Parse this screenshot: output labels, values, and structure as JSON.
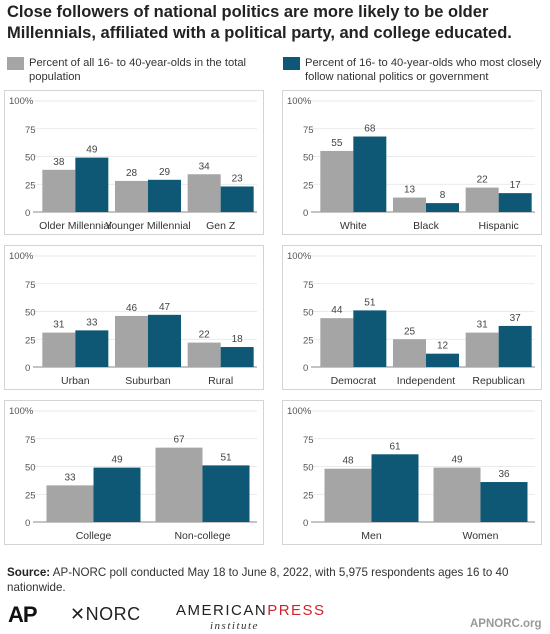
{
  "title": "Close followers of national politics are more likely to be older Millennials, affiliated with a political party, and college educated.",
  "legend": {
    "series_a": "Percent of all 16- to 40-year-olds in the total population",
    "series_b": "Percent of 16- to 40-year-olds who most closely follow national politics or government"
  },
  "colors": {
    "series_a": "#a5a5a5",
    "series_b": "#0f5875"
  },
  "source_label": "Source:",
  "source_text": "AP-NORC poll conducted May 18 to June 8, 2022, with 5,975 respondents ages 16 to 40 nationwide.",
  "logos": {
    "ap": "AP",
    "norc": "NORC",
    "api_american": "AMERICAN",
    "api_press": "PRESS",
    "api_institute": "institute"
  },
  "site": "APNORC.org",
  "chart_data": [
    {
      "type": "bar",
      "categories": [
        "Older Millennial",
        "Younger Millennial",
        "Gen Z"
      ],
      "series": [
        {
          "name": "Percent of all 16- to 40-year-olds in the total population",
          "values": [
            38,
            28,
            34
          ]
        },
        {
          "name": "Percent of 16- to 40-year-olds who most closely follow national politics or government",
          "values": [
            49,
            29,
            23
          ]
        }
      ],
      "yticks": [
        "0",
        "25",
        "50",
        "75",
        "100%"
      ],
      "ylim": [
        0,
        100
      ]
    },
    {
      "type": "bar",
      "categories": [
        "White",
        "Black",
        "Hispanic"
      ],
      "series": [
        {
          "name": "Percent of all 16- to 40-year-olds in the total population",
          "values": [
            55,
            13,
            22
          ]
        },
        {
          "name": "Percent of 16- to 40-year-olds who most closely follow national politics or government",
          "values": [
            68,
            8,
            17
          ]
        }
      ],
      "yticks": [
        "0",
        "25",
        "50",
        "75",
        "100%"
      ],
      "ylim": [
        0,
        100
      ]
    },
    {
      "type": "bar",
      "categories": [
        "Urban",
        "Suburban",
        "Rural"
      ],
      "series": [
        {
          "name": "Percent of all 16- to 40-year-olds in the total population",
          "values": [
            31,
            46,
            22
          ]
        },
        {
          "name": "Percent of 16- to 40-year-olds who most closely follow national politics or government",
          "values": [
            33,
            47,
            18
          ]
        }
      ],
      "yticks": [
        "0",
        "25",
        "50",
        "75",
        "100%"
      ],
      "ylim": [
        0,
        100
      ]
    },
    {
      "type": "bar",
      "categories": [
        "Democrat",
        "Independent",
        "Republican"
      ],
      "series": [
        {
          "name": "Percent of all 16- to 40-year-olds in the total population",
          "values": [
            44,
            25,
            31
          ]
        },
        {
          "name": "Percent of 16- to 40-year-olds who most closely follow national politics or government",
          "values": [
            51,
            12,
            37
          ]
        }
      ],
      "yticks": [
        "0",
        "25",
        "50",
        "75",
        "100%"
      ],
      "ylim": [
        0,
        100
      ]
    },
    {
      "type": "bar",
      "categories": [
        "College",
        "Non-college"
      ],
      "series": [
        {
          "name": "Percent of all 16- to 40-year-olds in the total population",
          "values": [
            33,
            67
          ]
        },
        {
          "name": "Percent of 16- to 40-year-olds who most closely follow national politics or government",
          "values": [
            49,
            51
          ]
        }
      ],
      "yticks": [
        "0",
        "25",
        "50",
        "75",
        "100%"
      ],
      "ylim": [
        0,
        100
      ]
    },
    {
      "type": "bar",
      "categories": [
        "Men",
        "Women"
      ],
      "series": [
        {
          "name": "Percent of all 16- to 40-year-olds in the total population",
          "values": [
            48,
            49
          ]
        },
        {
          "name": "Percent of 16- to 40-year-olds who most closely follow national politics or government",
          "values": [
            61,
            36
          ]
        }
      ],
      "yticks": [
        "0",
        "25",
        "50",
        "75",
        "100%"
      ],
      "ylim": [
        0,
        100
      ]
    }
  ]
}
